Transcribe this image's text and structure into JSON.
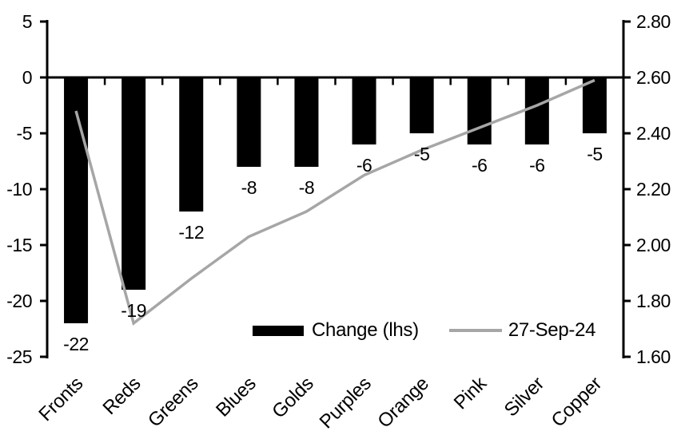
{
  "chart_data": {
    "type": "bar",
    "subtype": "bar-and-line-dual-axis",
    "title": "",
    "grid": false,
    "background": "#ffffff",
    "categories": [
      "Fronts",
      "Reds",
      "Greens",
      "Blues",
      "Golds",
      "Purples",
      "Orange",
      "Pink",
      "Silver",
      "Copper"
    ],
    "series": [
      {
        "name": "Change (lhs)",
        "type": "bar",
        "axis": "left",
        "color": "#000000",
        "values": [
          -22,
          -19,
          -12,
          -8,
          -8,
          -6,
          -5,
          -6,
          -6,
          -5
        ],
        "data_labels": [
          "-22",
          "-19",
          "-12",
          "-8",
          "-8",
          "-6",
          "-5",
          "-6",
          "-6",
          "-5"
        ]
      },
      {
        "name": "27-Sep-24",
        "type": "line",
        "axis": "right",
        "color": "#a6a6a6",
        "values": [
          2.48,
          1.72,
          1.88,
          2.03,
          2.12,
          2.25,
          2.34,
          2.42,
          2.5,
          2.59
        ]
      }
    ],
    "left_axis": {
      "min": -25,
      "max": 5,
      "step": 5,
      "tick_labels": [
        "5",
        "0",
        "-5",
        "-10",
        "-15",
        "-20",
        "-25"
      ]
    },
    "right_axis": {
      "min": 1.6,
      "max": 2.8,
      "step": 0.2,
      "tick_labels": [
        "2.80",
        "2.60",
        "2.40",
        "2.20",
        "2.00",
        "1.80",
        "1.60"
      ]
    },
    "legend": {
      "position": "bottom-inside",
      "entries": [
        "Change (lhs)",
        "27-Sep-24"
      ]
    },
    "axis_color": "#000000",
    "text_color": "#000000"
  }
}
